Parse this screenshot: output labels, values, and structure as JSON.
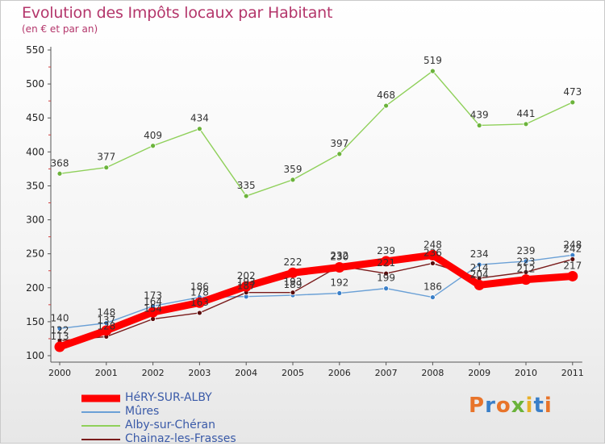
{
  "header": {
    "title": "Evolution des Impôts locaux par Habitant",
    "subtitle": "(en € et par an)"
  },
  "brand": {
    "text": "Proxiti",
    "colors": [
      "#e8742a",
      "#3a7fc8",
      "#e8742a",
      "#6bb33b",
      "#e8b02a",
      "#3a7fc8",
      "#e8742a"
    ]
  },
  "chart_data": {
    "type": "line",
    "title": "Evolution des Impôts locaux par Habitant",
    "subtitle": "(en € et par an)",
    "xlabel": "",
    "ylabel": "",
    "ylim": [
      100,
      550
    ],
    "yticks": [
      100,
      150,
      200,
      250,
      300,
      350,
      400,
      450,
      500,
      550
    ],
    "grid": false,
    "legend_position": "bottom-left",
    "categories": [
      "2000",
      "2001",
      "2002",
      "2003",
      "2004",
      "2005",
      "2006",
      "2007",
      "2008",
      "2009",
      "2010",
      "2011"
    ],
    "series": [
      {
        "name": "HéRY-SUR-ALBY",
        "color": "#ff0000",
        "values": [
          113,
          137,
          164,
          178,
          202,
          222,
          230,
          239,
          248,
          204,
          212,
          217
        ],
        "labels": [
          "113",
          "137",
          "164",
          "178",
          "202",
          "222",
          "230",
          "239",
          "248",
          "204",
          "212",
          "217"
        ]
      },
      {
        "name": "Mûres",
        "color": "#6aa0d6",
        "values": [
          140,
          148,
          173,
          186,
          187,
          189,
          192,
          199,
          186,
          234,
          239,
          248
        ],
        "labels": [
          "140",
          "148",
          "173",
          "186",
          "187",
          "189",
          "192",
          "199",
          "186",
          "234",
          "239",
          "248"
        ]
      },
      {
        "name": "Alby-sur-Chéran",
        "color": "#8fd05a",
        "values": [
          368,
          377,
          409,
          434,
          335,
          359,
          397,
          468,
          519,
          439,
          441,
          473
        ],
        "labels": [
          "368",
          "377",
          "409",
          "434",
          "335",
          "359",
          "397",
          "468",
          "519",
          "439",
          "441",
          "473"
        ]
      },
      {
        "name": "Chainaz-les-Frasses",
        "color": "#7a1c1c",
        "values": [
          122,
          128,
          154,
          163,
          193,
          193,
          232,
          221,
          236,
          214,
          223,
          242
        ],
        "labels": [
          "122",
          "128",
          "154",
          "163",
          "193",
          "193",
          "232",
          "221",
          "236",
          "214",
          "223",
          "242"
        ]
      }
    ]
  }
}
